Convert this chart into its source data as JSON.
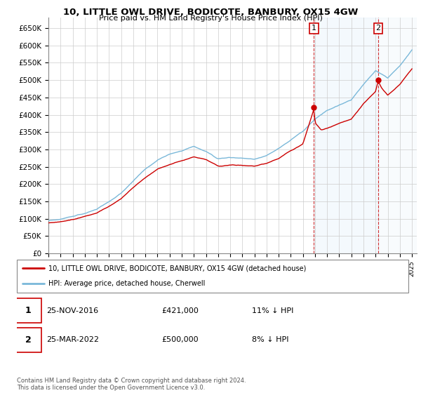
{
  "title": "10, LITTLE OWL DRIVE, BODICOTE, BANBURY, OX15 4GW",
  "subtitle": "Price paid vs. HM Land Registry's House Price Index (HPI)",
  "legend_line1": "10, LITTLE OWL DRIVE, BODICOTE, BANBURY, OX15 4GW (detached house)",
  "legend_line2": "HPI: Average price, detached house, Cherwell",
  "annotation1_label": "1",
  "annotation1_date": "25-NOV-2016",
  "annotation1_price": "£421,000",
  "annotation1_note": "11% ↓ HPI",
  "annotation2_label": "2",
  "annotation2_date": "25-MAR-2022",
  "annotation2_price": "£500,000",
  "annotation2_note": "8% ↓ HPI",
  "footer": "Contains HM Land Registry data © Crown copyright and database right 2024.\nThis data is licensed under the Open Government Licence v3.0.",
  "hpi_color": "#7ab8d9",
  "hpi_fill_color": "#d6eaf8",
  "price_color": "#cc0000",
  "annotation_color": "#cc0000",
  "ylim": [
    0,
    680000
  ],
  "yticks": [
    0,
    50000,
    100000,
    150000,
    200000,
    250000,
    300000,
    350000,
    400000,
    450000,
    500000,
    550000,
    600000,
    650000
  ],
  "start_year": 1995,
  "end_year": 2025,
  "t1": 2016.9167,
  "p1": 421000,
  "t2": 2022.2083,
  "p2": 500000
}
